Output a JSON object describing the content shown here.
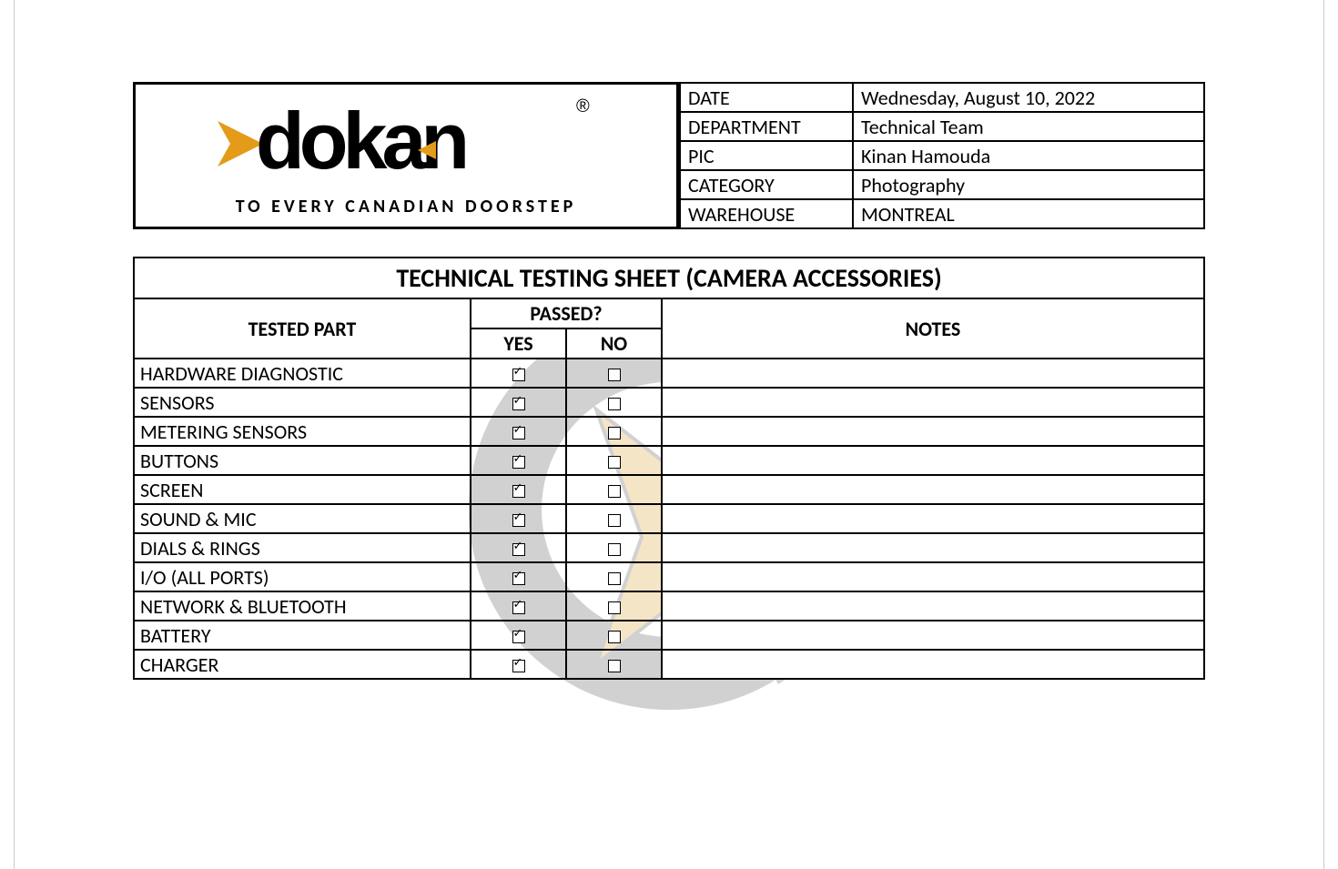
{
  "logo": {
    "brand": "dokan",
    "tagline": "TO EVERY CANADIAN DOORSTEP",
    "registered": "®",
    "colors": {
      "text": "#000000",
      "accent": "#e49b1a"
    }
  },
  "info": {
    "rows": [
      {
        "label": "DATE",
        "value": "Wednesday, August 10, 2022"
      },
      {
        "label": "DEPARTMENT",
        "value": "Technical Team"
      },
      {
        "label": "PIC",
        "value": "Kinan Hamouda"
      },
      {
        "label": "CATEGORY",
        "value": "Photography"
      },
      {
        "label": "WAREHOUSE",
        "value": "MONTREAL"
      }
    ]
  },
  "sheet": {
    "title": "TECHNICAL TESTING SHEET (CAMERA ACCESSORIES)",
    "headers": {
      "tested_part": "TESTED PART",
      "passed": "PASSED?",
      "yes": "YES",
      "no": "NO",
      "notes": "NOTES"
    },
    "rows": [
      {
        "part": "HARDWARE DIAGNOSTIC",
        "yes": true,
        "no": false,
        "notes": ""
      },
      {
        "part": "SENSORS",
        "yes": true,
        "no": false,
        "notes": ""
      },
      {
        "part": "METERING SENSORS",
        "yes": true,
        "no": false,
        "notes": ""
      },
      {
        "part": "BUTTONS",
        "yes": true,
        "no": false,
        "notes": ""
      },
      {
        "part": "SCREEN",
        "yes": true,
        "no": false,
        "notes": ""
      },
      {
        "part": "SOUND & MIC",
        "yes": true,
        "no": false,
        "notes": ""
      },
      {
        "part": "DIALS & RINGS",
        "yes": true,
        "no": false,
        "notes": ""
      },
      {
        "part": "I/O (ALL PORTS)",
        "yes": true,
        "no": false,
        "notes": ""
      },
      {
        "part": "NETWORK & BLUETOOTH",
        "yes": true,
        "no": false,
        "notes": ""
      },
      {
        "part": "BATTERY",
        "yes": true,
        "no": false,
        "notes": ""
      },
      {
        "part": "CHARGER",
        "yes": true,
        "no": false,
        "notes": ""
      }
    ]
  },
  "watermark": {
    "ring_color": "#9b9b9b",
    "arrow_fill": "#e8c785",
    "arrow_stroke": "#9b9b9b"
  }
}
